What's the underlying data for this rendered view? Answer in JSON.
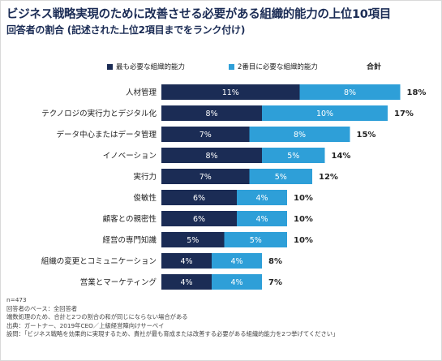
{
  "title": "ビジネス戦略実現のために改善させる必要がある組織的能力の上位10項目",
  "subtitle": "回答者の割合 (記述された上位2項目までをランク付け)",
  "legend": {
    "first_label": "最も必要な組織的能力",
    "second_label": "2番目に必要な組織的能力",
    "total_label": "合計"
  },
  "colors": {
    "first": "#1b2c55",
    "second": "#2e9fd8"
  },
  "chart_data": {
    "type": "bar",
    "orientation": "horizontal",
    "stacked": true,
    "title": "ビジネス戦略実現のために改善させる必要がある組織的能力の上位10項目",
    "subtitle": "回答者の割合 (記述された上位2項目までをランク付け)",
    "value_suffix": "%",
    "categories": [
      "人材管理",
      "テクノロジの実行力とデジタル化",
      "データ中心またはデータ管理",
      "イノベーション",
      "実行力",
      "俊敏性",
      "顧客との親密性",
      "経営の専門知識",
      "組織の変更とコミュニケーション",
      "営業とマーケティング"
    ],
    "series": [
      {
        "name": "最も必要な組織的能力",
        "values": [
          11,
          8,
          7,
          8,
          7,
          6,
          6,
          5,
          4,
          4
        ]
      },
      {
        "name": "2番目に必要な組織的能力",
        "values": [
          8,
          10,
          8,
          5,
          5,
          4,
          4,
          5,
          4,
          4
        ]
      }
    ],
    "totals_label": "合計",
    "totals": [
      18,
      17,
      15,
      14,
      12,
      10,
      10,
      10,
      8,
      7
    ],
    "legend_position": "top",
    "grid": false
  },
  "footnotes": [
    "n=473",
    "回答者のベース：全回答者",
    "端数処理のため、合計と2つの割合の和が同じにならない場合がある",
    "出典：ガートナー、2019年CEO／上級経営陣向けサーベイ",
    "設問：「ビジネス戦略を効果的に実現するため、貴社が最も育成または改善する必要がある組織的能力を2つ挙げてください」"
  ]
}
